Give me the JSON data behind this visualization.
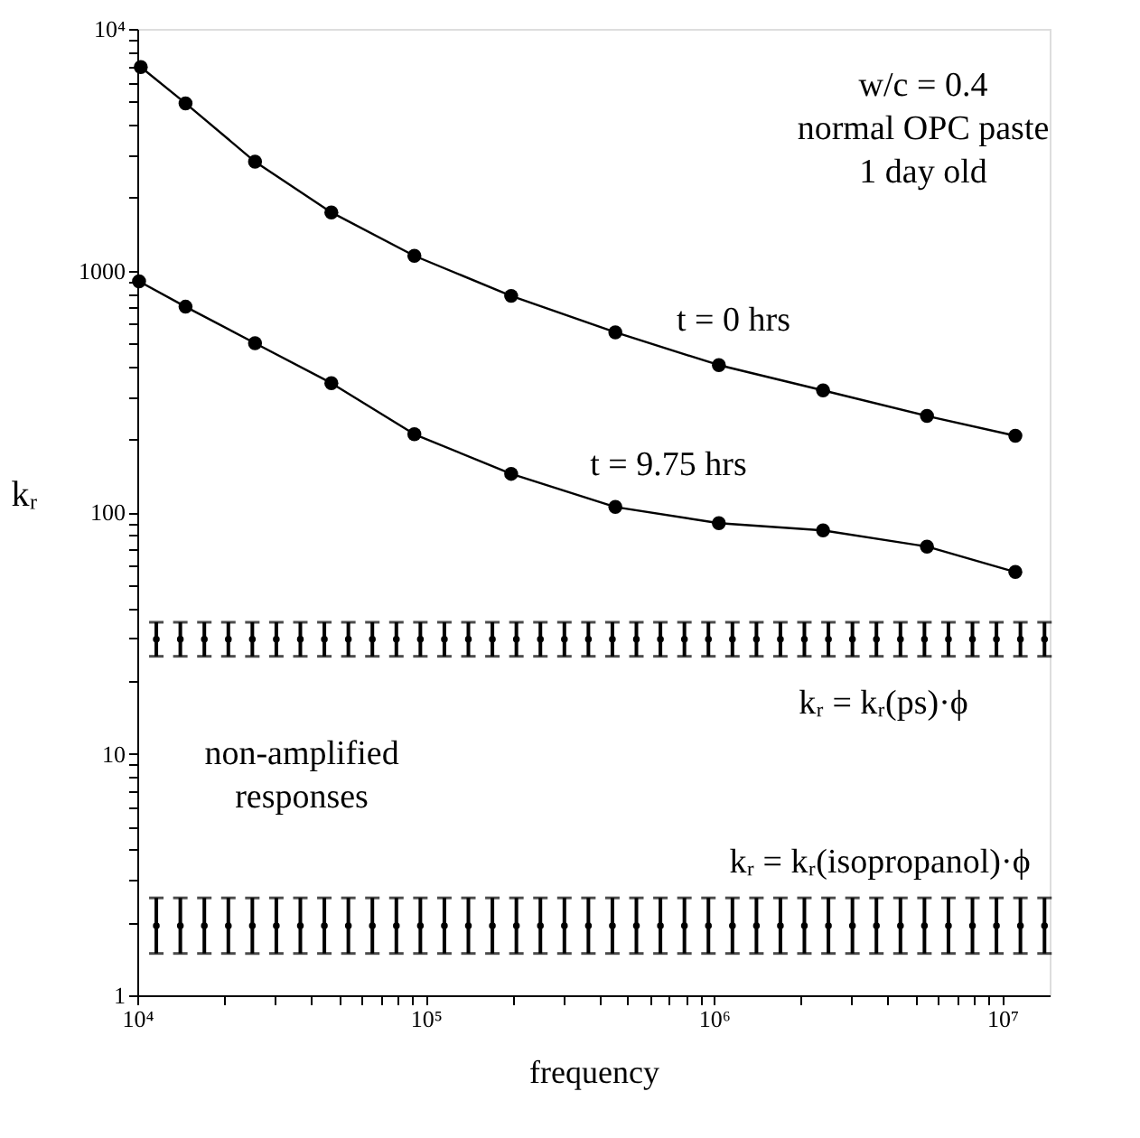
{
  "chart_data": {
    "type": "line",
    "xlabel": "frequency",
    "ylabel": "kᵣ",
    "log": "xy",
    "grid": false,
    "marker": "circle",
    "line_style": "solid",
    "xlim": [
      10000,
      14600000
    ],
    "ylim": [
      1,
      10000
    ],
    "xticks": [
      {
        "value": 10000,
        "label": "10⁴"
      },
      {
        "value": 20000,
        "label": null
      },
      {
        "value": 30000,
        "label": null
      },
      {
        "value": 40000,
        "label": null
      },
      {
        "value": 50000,
        "label": null
      },
      {
        "value": 60000,
        "label": null
      },
      {
        "value": 70000,
        "label": null
      },
      {
        "value": 80000,
        "label": null
      },
      {
        "value": 90000,
        "label": null
      },
      {
        "value": 100000,
        "label": "10⁵"
      },
      {
        "value": 200000,
        "label": null
      },
      {
        "value": 300000,
        "label": null
      },
      {
        "value": 400000,
        "label": null
      },
      {
        "value": 500000,
        "label": null
      },
      {
        "value": 600000,
        "label": null
      },
      {
        "value": 700000,
        "label": null
      },
      {
        "value": 800000,
        "label": null
      },
      {
        "value": 900000,
        "label": null
      },
      {
        "value": 1000000,
        "label": "10⁶"
      },
      {
        "value": 2000000,
        "label": null
      },
      {
        "value": 3000000,
        "label": null
      },
      {
        "value": 4000000,
        "label": null
      },
      {
        "value": 5000000,
        "label": null
      },
      {
        "value": 6000000,
        "label": null
      },
      {
        "value": 7000000,
        "label": null
      },
      {
        "value": 8000000,
        "label": null
      },
      {
        "value": 9000000,
        "label": null
      },
      {
        "value": 10000000,
        "label": "10⁷"
      }
    ],
    "yticks": [
      1,
      {
        "value": 2,
        "label": null
      },
      {
        "value": 3,
        "label": null
      },
      {
        "value": 4,
        "label": null
      },
      {
        "value": 5,
        "label": null
      },
      {
        "value": 6,
        "label": null
      },
      {
        "value": 7,
        "label": null
      },
      {
        "value": 8,
        "label": null
      },
      {
        "value": 9,
        "label": null
      },
      10,
      {
        "value": 20,
        "label": null
      },
      {
        "value": 30,
        "label": null
      },
      {
        "value": 40,
        "label": null
      },
      {
        "value": 50,
        "label": null
      },
      {
        "value": 60,
        "label": null
      },
      {
        "value": 70,
        "label": null
      },
      {
        "value": 80,
        "label": null
      },
      {
        "value": 90,
        "label": null
      },
      100,
      {
        "value": 200,
        "label": null
      },
      {
        "value": 300,
        "label": null
      },
      {
        "value": 400,
        "label": null
      },
      {
        "value": 500,
        "label": null
      },
      {
        "value": 600,
        "label": null
      },
      {
        "value": 700,
        "label": null
      },
      {
        "value": 800,
        "label": null
      },
      {
        "value": 900,
        "label": null
      },
      1000,
      {
        "value": 2000,
        "label": null
      },
      {
        "value": 3000,
        "label": null
      },
      {
        "value": 4000,
        "label": null
      },
      {
        "value": 5000,
        "label": null
      },
      {
        "value": 6000,
        "label": null
      },
      {
        "value": 7000,
        "label": null
      },
      {
        "value": 8000,
        "label": null
      },
      {
        "value": 9000,
        "label": null
      },
      {
        "value": 10000,
        "label": "10⁴"
      }
    ],
    "series": [
      {
        "color": "#000000",
        "x": [
          10280,
          14700,
          25600,
          47100,
          91400,
          198000,
          455000,
          1040000,
          2390000,
          5480000,
          11100000
        ],
        "values": [
          6950,
          4920,
          2820,
          1740,
          1150,
          785,
          555,
          406,
          319,
          250,
          207
        ]
      },
      {
        "color": "#000000",
        "x": [
          10140,
          14700,
          25600,
          47100,
          91400,
          198000,
          455000,
          1040000,
          2390000,
          5480000,
          11100000
        ],
        "values": [
          902,
          708,
          500,
          342,
          210,
          144,
          105,
          90,
          84,
          72,
          56.5
        ]
      },
      {
        "type": "scatter",
        "color": "#000000",
        "x": [
          11640,
          14100,
          17080,
          20690,
          25060,
          30350,
          36770,
          44540,
          53950,
          65350,
          79160,
          95890,
          116150,
          140700,
          170430,
          206440,
          250060,
          302900,
          366900,
          444400,
          538300,
          652100,
          789900,
          956800,
          1159000,
          1404000,
          1700000,
          2059000,
          2495000,
          3022000,
          3660000,
          4434000,
          5371000,
          6506000,
          7881000,
          9546000,
          11560000,
          14010000
        ],
        "values": [
          29.8,
          29.8,
          29.8,
          29.8,
          29.8,
          29.8,
          29.8,
          29.8,
          29.8,
          29.8,
          29.8,
          29.8,
          29.8,
          29.8,
          29.8,
          29.8,
          29.8,
          29.8,
          29.8,
          29.8,
          29.8,
          29.8,
          29.8,
          29.8,
          29.8,
          29.8,
          29.8,
          29.8,
          29.8,
          29.8,
          29.8,
          29.8,
          29.8,
          29.8,
          29.8,
          29.8,
          29.8,
          29.8
        ],
        "errors": [
          [
            25.3,
            35
          ],
          [
            25.3,
            35
          ],
          [
            25.3,
            35
          ],
          [
            25.3,
            35
          ],
          [
            25.3,
            35
          ],
          [
            25.3,
            35
          ],
          [
            25.3,
            35
          ],
          [
            25.3,
            35
          ],
          [
            25.3,
            35
          ],
          [
            25.3,
            35
          ],
          [
            25.3,
            35
          ],
          [
            25.3,
            35
          ],
          [
            25.3,
            35
          ],
          [
            25.3,
            35
          ],
          [
            25.3,
            35
          ],
          [
            25.3,
            35
          ],
          [
            25.3,
            35
          ],
          [
            25.3,
            35
          ],
          [
            25.3,
            35
          ],
          [
            25.3,
            35
          ],
          [
            25.3,
            35
          ],
          [
            25.3,
            35
          ],
          [
            25.3,
            35
          ],
          [
            25.3,
            35
          ],
          [
            25.3,
            35
          ],
          [
            25.3,
            35
          ],
          [
            25.3,
            35
          ],
          [
            25.3,
            35
          ],
          [
            25.3,
            35
          ],
          [
            25.3,
            35
          ],
          [
            25.3,
            35
          ],
          [
            25.3,
            35
          ],
          [
            25.3,
            35
          ],
          [
            25.3,
            35
          ],
          [
            25.3,
            35
          ],
          [
            25.3,
            35
          ],
          [
            25.3,
            35
          ],
          [
            25.3,
            35
          ]
        ]
      },
      {
        "type": "scatter",
        "color": "#000000",
        "x": [
          11640,
          14100,
          17080,
          20690,
          25060,
          30350,
          36770,
          44540,
          53950,
          65350,
          79160,
          95890,
          116150,
          140700,
          170430,
          206440,
          250060,
          302900,
          366900,
          444400,
          538300,
          652100,
          789900,
          956800,
          1159000,
          1404000,
          1700000,
          2059000,
          2495000,
          3022000,
          3660000,
          4434000,
          5371000,
          6506000,
          7881000,
          9546000,
          11560000,
          14010000
        ],
        "values": [
          1.94,
          1.94,
          1.94,
          1.94,
          1.94,
          1.94,
          1.94,
          1.94,
          1.94,
          1.94,
          1.94,
          1.94,
          1.94,
          1.94,
          1.94,
          1.94,
          1.94,
          1.94,
          1.94,
          1.94,
          1.94,
          1.94,
          1.94,
          1.94,
          1.94,
          1.94,
          1.94,
          1.94,
          1.94,
          1.94,
          1.94,
          1.94,
          1.94,
          1.94,
          1.94,
          1.94,
          1.94,
          1.94
        ],
        "errors": [
          [
            1.49,
            2.53
          ],
          [
            1.49,
            2.53
          ],
          [
            1.49,
            2.53
          ],
          [
            1.49,
            2.53
          ],
          [
            1.49,
            2.53
          ],
          [
            1.49,
            2.53
          ],
          [
            1.49,
            2.53
          ],
          [
            1.49,
            2.53
          ],
          [
            1.49,
            2.53
          ],
          [
            1.49,
            2.53
          ],
          [
            1.49,
            2.53
          ],
          [
            1.49,
            2.53
          ],
          [
            1.49,
            2.53
          ],
          [
            1.49,
            2.53
          ],
          [
            1.49,
            2.53
          ],
          [
            1.49,
            2.53
          ],
          [
            1.49,
            2.53
          ],
          [
            1.49,
            2.53
          ],
          [
            1.49,
            2.53
          ],
          [
            1.49,
            2.53
          ],
          [
            1.49,
            2.53
          ],
          [
            1.49,
            2.53
          ],
          [
            1.49,
            2.53
          ],
          [
            1.49,
            2.53
          ],
          [
            1.49,
            2.53
          ],
          [
            1.49,
            2.53
          ],
          [
            1.49,
            2.53
          ],
          [
            1.49,
            2.53
          ],
          [
            1.49,
            2.53
          ],
          [
            1.49,
            2.53
          ],
          [
            1.49,
            2.53
          ],
          [
            1.49,
            2.53
          ],
          [
            1.49,
            2.53
          ],
          [
            1.49,
            2.53
          ],
          [
            1.49,
            2.53
          ],
          [
            1.49,
            2.53
          ],
          [
            1.49,
            2.53
          ],
          [
            1.49,
            2.53
          ]
        ]
      }
    ],
    "annotations": [
      "w/c = 0.4\nnormal OPC paste\n1 day old",
      "non-amplified\nresponses",
      "t = 0 hrs",
      "t = 9.75 hrs",
      "kᵣ = kᵣ(ps)·ϕ",
      "kᵣ = kᵣ(isopropanol)·ϕ"
    ]
  }
}
